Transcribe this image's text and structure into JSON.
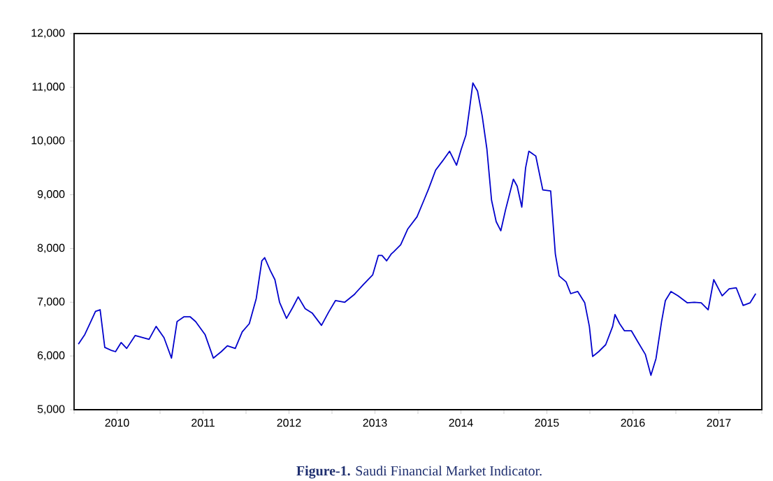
{
  "chart_data": {
    "type": "line",
    "x": [
      2010.05,
      2010.125,
      2010.195,
      2010.249,
      2010.303,
      2010.357,
      2010.439,
      2010.482,
      2010.547,
      2010.612,
      2010.71,
      2010.872,
      2010.954,
      2011.046,
      2011.133,
      2011.198,
      2011.279,
      2011.349,
      2011.414,
      2011.523,
      2011.62,
      2011.712,
      2011.783,
      2011.875,
      2011.956,
      2012.038,
      2012.119,
      2012.184,
      2012.217,
      2012.282,
      2012.336,
      2012.39,
      2012.471,
      2012.542,
      2012.607,
      2012.688,
      2012.769,
      2012.878,
      2012.959,
      2013.04,
      2013.149,
      2013.257,
      2013.366,
      2013.474,
      2013.539,
      2013.582,
      2013.636,
      2013.691,
      2013.718,
      2013.799,
      2013.88,
      2013.989,
      2014.07,
      2014.124,
      2014.206,
      2014.287,
      2014.368,
      2014.449,
      2014.504,
      2014.558,
      2014.601,
      2014.639,
      2014.693,
      2014.748,
      2014.802,
      2014.856,
      2014.91,
      2014.964,
      2015.019,
      2015.11,
      2015.154,
      2015.208,
      2015.252,
      2015.29,
      2015.371,
      2015.452,
      2015.544,
      2015.598,
      2015.642,
      2015.723,
      2015.777,
      2015.859,
      2015.94,
      2015.994,
      2016.032,
      2016.102,
      2016.184,
      2016.265,
      2016.292,
      2016.346,
      2016.401,
      2016.482,
      2016.563,
      2016.645,
      2016.71,
      2016.769,
      2016.834,
      2016.878,
      2016.943,
      2017.024,
      2017.132,
      2017.214,
      2017.295,
      2017.376,
      2017.441,
      2017.539,
      2017.62,
      2017.702,
      2017.783,
      2017.864,
      2017.929
    ],
    "series": [
      {
        "color": "#0000cc",
        "values": [
          6220,
          6400,
          6640,
          6830,
          6860,
          6160,
          6100,
          6080,
          6250,
          6140,
          6380,
          6310,
          6550,
          6340,
          5960,
          6640,
          6730,
          6730,
          6640,
          6400,
          5960,
          6080,
          6190,
          6140,
          6450,
          6600,
          7070,
          7770,
          7830,
          7590,
          7420,
          7000,
          6700,
          6900,
          7100,
          6880,
          6800,
          6570,
          6810,
          7030,
          7000,
          7140,
          7330,
          7510,
          7870,
          7870,
          7770,
          7900,
          7940,
          8070,
          8360,
          8590,
          8900,
          9110,
          9460,
          9630,
          9810,
          9550,
          9850,
          10110,
          10610,
          11080,
          10930,
          10460,
          9850,
          8900,
          8500,
          8330,
          8720,
          9290,
          9160,
          8770,
          9500,
          9810,
          9720,
          9090,
          9070,
          7900,
          7490,
          7380,
          7160,
          7200,
          6990,
          6550,
          5990,
          6080,
          6210,
          6550,
          6770,
          6600,
          6470,
          6470,
          6250,
          6030,
          5640,
          5950,
          6640,
          7030,
          7200,
          7120,
          6990,
          7000,
          6990,
          6860,
          7420,
          7120,
          7250,
          7270,
          6940,
          6990,
          7160
        ]
      }
    ],
    "xlim": [
      2010,
      2018
    ],
    "xticks": [
      {
        "value": 2010,
        "label": null
      },
      {
        "value": 2010.5,
        "label": "2010"
      },
      {
        "value": 2011,
        "label": null
      },
      {
        "value": 2011.5,
        "label": "2011"
      },
      {
        "value": 2012,
        "label": null
      },
      {
        "value": 2012.5,
        "label": "2012"
      },
      {
        "value": 2013,
        "label": null
      },
      {
        "value": 2013.5,
        "label": "2013"
      },
      {
        "value": 2014,
        "label": null
      },
      {
        "value": 2014.5,
        "label": "2014"
      },
      {
        "value": 2015,
        "label": null
      },
      {
        "value": 2015.5,
        "label": "2015"
      },
      {
        "value": 2016,
        "label": null
      },
      {
        "value": 2016.5,
        "label": "2016"
      },
      {
        "value": 2017,
        "label": null
      },
      {
        "value": 2017.5,
        "label": "2017"
      },
      {
        "value": 2018,
        "label": null
      }
    ],
    "ylim": [
      5000,
      12000
    ],
    "yticks": [
      {
        "value": 5000,
        "label": "5,000"
      },
      {
        "value": 6000,
        "label": "6,000"
      },
      {
        "value": 7000,
        "label": "7,000"
      },
      {
        "value": 8000,
        "label": "8,000"
      },
      {
        "value": 9000,
        "label": "9,000"
      },
      {
        "value": 10000,
        "label": "10,000"
      },
      {
        "value": 11000,
        "label": "11,000"
      },
      {
        "value": 12000,
        "label": "12,000"
      }
    ],
    "annotations": [
      "**Figure-1.** Saudi Financial Market Indicator."
    ]
  }
}
